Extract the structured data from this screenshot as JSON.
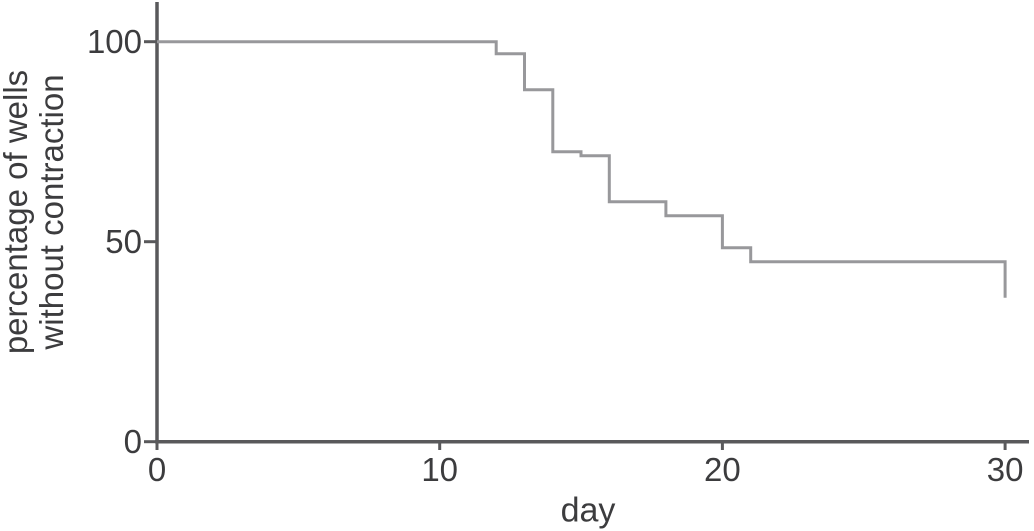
{
  "chart_data": {
    "type": "line",
    "subtype": "kaplan-meier-step",
    "title": "",
    "xlabel": "day",
    "ylabel_lines": [
      "percentage of wells",
      "without contraction"
    ],
    "xlim": [
      0,
      30
    ],
    "ylim": [
      0,
      100
    ],
    "xticks": [
      "0",
      "10",
      "20",
      "30"
    ],
    "xtick_values": [
      0,
      10,
      20,
      30
    ],
    "yticks": [
      "0",
      "50",
      "100"
    ],
    "ytick_values": [
      0,
      50,
      100
    ],
    "grid": false,
    "legend": "none",
    "series": [
      {
        "name": "wells without contraction",
        "color": "#98989b",
        "steps": [
          {
            "day": 0,
            "percent": 100
          },
          {
            "day": 12,
            "percent": 97
          },
          {
            "day": 13,
            "percent": 88
          },
          {
            "day": 14,
            "percent": 72.5
          },
          {
            "day": 15,
            "percent": 71.5
          },
          {
            "day": 16,
            "percent": 60
          },
          {
            "day": 18,
            "percent": 56.5
          },
          {
            "day": 20,
            "percent": 48.5
          },
          {
            "day": 21,
            "percent": 45
          },
          {
            "day": 30,
            "percent": 36
          }
        ],
        "curve_end_day": 30
      }
    ]
  },
  "style": {
    "background_color": "#ffffff",
    "axis_color": "#59595b",
    "tick_color": "#59595b",
    "text_color": "#3c3c3e",
    "curve_color": "#98989b"
  }
}
